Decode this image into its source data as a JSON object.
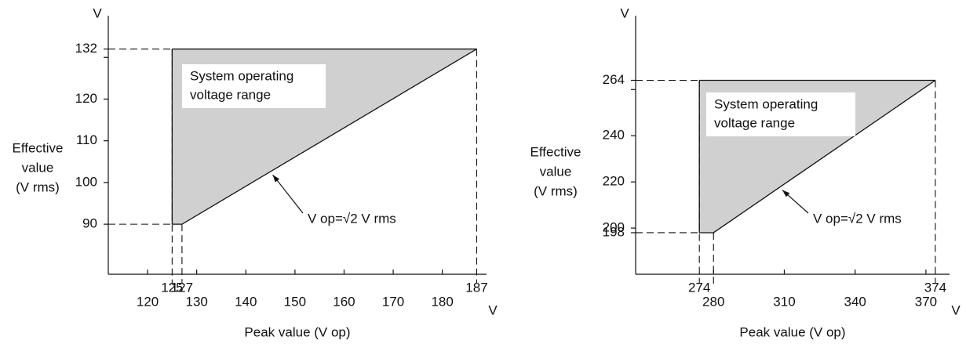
{
  "chart_data": [
    {
      "type": "area",
      "x": [
        125,
        127,
        187
      ],
      "values": [
        90,
        90,
        132
      ],
      "top": 132,
      "color": "#d0d0d0",
      "xlim": [
        112,
        189
      ],
      "ylim": [
        78,
        140
      ],
      "xticks": [
        120,
        130,
        140,
        150,
        160,
        170,
        180
      ],
      "xrefs": [
        125,
        127,
        187
      ],
      "yticks": [
        90,
        100,
        110,
        120,
        {
          "value": 130,
          "label": null
        }
      ],
      "yrefs": [
        132
      ],
      "x_unit": "V",
      "y_unit": "V",
      "x_label": "Peak value (V op)",
      "y_label": [
        "Effective",
        "value",
        "(V rms)"
      ],
      "region_label": [
        "System operating",
        "voltage range"
      ],
      "line_label": "V op=√2 V rms"
    },
    {
      "type": "area",
      "x": [
        274,
        280,
        374
      ],
      "values": [
        198,
        198,
        264
      ],
      "top": 264,
      "color": "#d0d0d0",
      "xlim": [
        247,
        380
      ],
      "ylim": [
        180,
        292
      ],
      "xticks": [
        280,
        310,
        340,
        370
      ],
      "xrefs": [
        274,
        374
      ],
      "yticks": [
        200,
        220,
        240,
        {
          "value": 260,
          "label": null
        }
      ],
      "yrefs": [
        198,
        264
      ],
      "x_unit": "V",
      "y_unit": "V",
      "x_label": "Peak value (V op)",
      "y_label": [
        "Effective",
        "value",
        "(V rms)"
      ],
      "region_label": [
        "System operating",
        "voltage range"
      ],
      "line_label": "V op=√2 V rms"
    }
  ]
}
